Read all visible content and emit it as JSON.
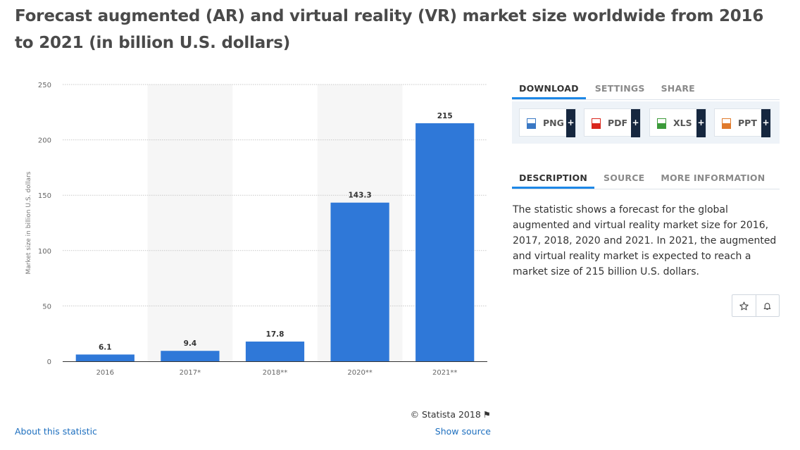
{
  "title": "Forecast augmented (AR) and virtual reality (VR) market size worldwide from 2016 to 2021 (in billion U.S. dollars)",
  "chart_data": {
    "type": "bar",
    "categories": [
      "2016",
      "2017*",
      "2018**",
      "2020**",
      "2021**"
    ],
    "values": [
      6.1,
      9.4,
      17.8,
      143.3,
      215
    ],
    "value_labels": [
      "6.1",
      "9.4",
      "17.8",
      "143.3",
      "215"
    ],
    "title": "",
    "xlabel": "",
    "ylabel": "Market size in billion U.S. dollars",
    "ylim": [
      0,
      250
    ],
    "yticks": [
      "0",
      "50",
      "100",
      "150",
      "200",
      "250"
    ],
    "bar_color": "#2f78d8",
    "grid": true,
    "legend": "none"
  },
  "copyright": "© Statista 2018",
  "links": {
    "about": "About this statistic",
    "show_source": "Show source"
  },
  "tabs_top": [
    "DOWNLOAD",
    "SETTINGS",
    "SHARE"
  ],
  "downloads": [
    {
      "label": "PNG",
      "icon": "png-file-icon",
      "color": "#3a78c4"
    },
    {
      "label": "PDF",
      "icon": "pdf-file-icon",
      "color": "#d9261c"
    },
    {
      "label": "XLS",
      "icon": "xls-file-icon",
      "color": "#3c9a3a"
    },
    {
      "label": "PPT",
      "icon": "ppt-file-icon",
      "color": "#e07a2c"
    }
  ],
  "tabs_info": [
    "DESCRIPTION",
    "SOURCE",
    "MORE INFORMATION"
  ],
  "description": "The statistic shows a forecast for the global augmented and virtual reality market size for 2016, 2017, 2018, 2020 and 2021. In 2021, the augmented and virtual reality market is expected to reach a market size of 215 billion U.S. dollars.",
  "colors": {
    "accent": "#1d87e6",
    "link": "#1d6fbf",
    "dark_button": "#16273f"
  }
}
